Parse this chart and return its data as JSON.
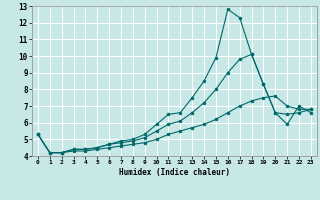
{
  "xlabel": "Humidex (Indice chaleur)",
  "background_color": "#c8e8e8",
  "grid_color": "#ffffff",
  "line_color": "#006868",
  "xlim": [
    -0.5,
    23.5
  ],
  "ylim": [
    4,
    13
  ],
  "xticks": [
    0,
    1,
    2,
    3,
    4,
    5,
    6,
    7,
    8,
    9,
    10,
    11,
    12,
    13,
    14,
    15,
    16,
    17,
    18,
    19,
    20,
    21,
    22,
    23
  ],
  "yticks": [
    4,
    5,
    6,
    7,
    8,
    9,
    10,
    11,
    12,
    13
  ],
  "line1_x": [
    0,
    1,
    2,
    3,
    4,
    5,
    6,
    7,
    8,
    9,
    10,
    11,
    12,
    13,
    14,
    15,
    16,
    17,
    18,
    19,
    20,
    21,
    22,
    23
  ],
  "line1_y": [
    5.3,
    4.2,
    4.2,
    4.4,
    4.4,
    4.5,
    4.7,
    4.9,
    5.0,
    5.3,
    5.9,
    6.5,
    6.6,
    7.5,
    8.5,
    9.9,
    12.8,
    12.3,
    10.1,
    8.3,
    6.6,
    5.9,
    7.0,
    6.6
  ],
  "line2_x": [
    0,
    1,
    2,
    3,
    4,
    5,
    6,
    7,
    8,
    9,
    10,
    11,
    12,
    13,
    14,
    15,
    16,
    17,
    18,
    19,
    20,
    21,
    22,
    23
  ],
  "line2_y": [
    5.3,
    4.2,
    4.2,
    4.4,
    4.4,
    4.5,
    4.7,
    4.8,
    4.9,
    5.1,
    5.5,
    5.9,
    6.1,
    6.6,
    7.2,
    8.0,
    9.0,
    9.8,
    10.1,
    8.3,
    6.6,
    6.5,
    6.6,
    6.8
  ],
  "line3_x": [
    0,
    1,
    2,
    3,
    4,
    5,
    6,
    7,
    8,
    9,
    10,
    11,
    12,
    13,
    14,
    15,
    16,
    17,
    18,
    19,
    20,
    21,
    22,
    23
  ],
  "line3_y": [
    5.3,
    4.2,
    4.2,
    4.3,
    4.3,
    4.4,
    4.5,
    4.6,
    4.7,
    4.8,
    5.0,
    5.3,
    5.5,
    5.7,
    5.9,
    6.2,
    6.6,
    7.0,
    7.3,
    7.5,
    7.6,
    7.0,
    6.8,
    6.8
  ]
}
